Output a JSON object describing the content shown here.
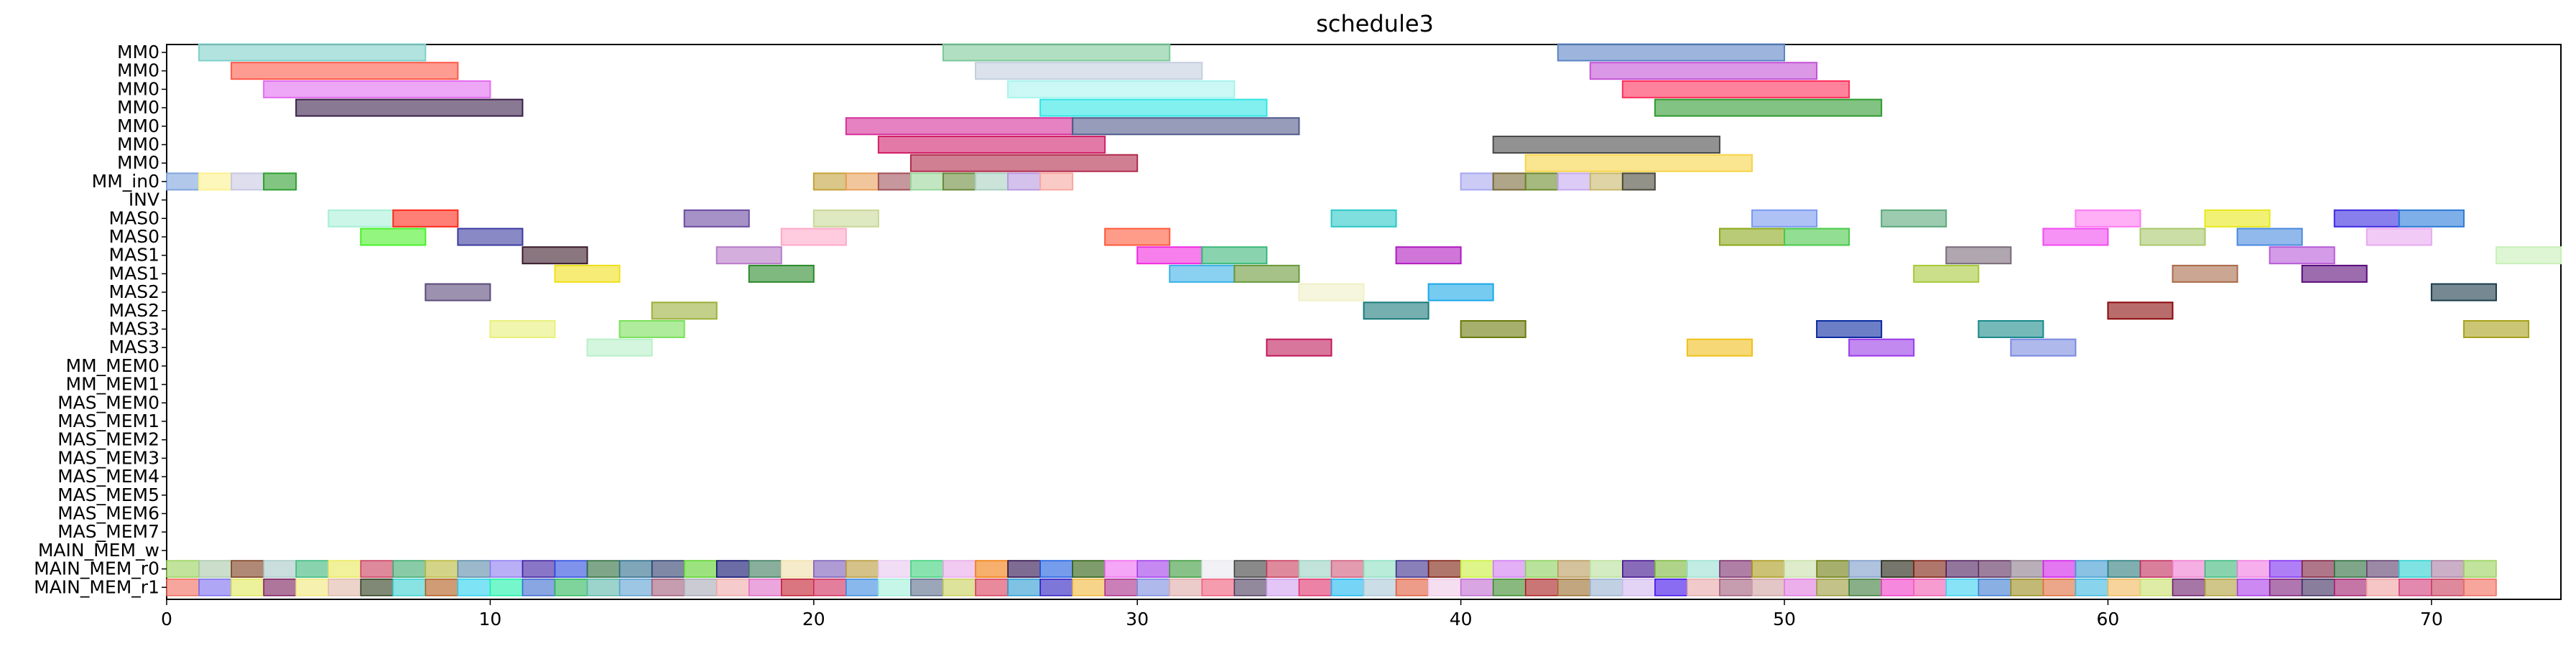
{
  "chart_data": {
    "type": "gantt",
    "title": "schedule3",
    "xlim": [
      0,
      74
    ],
    "x_ticks": [
      0,
      10,
      20,
      30,
      40,
      50,
      60,
      70
    ],
    "rows": [
      "MM0",
      "MM0",
      "MM0",
      "MM0",
      "MM0",
      "MM0",
      "MM0",
      "MM_in0",
      "INV",
      "MAS0",
      "MAS0",
      "MAS1",
      "MAS1",
      "MAS2",
      "MAS2",
      "MAS3",
      "MAS3",
      "MM_MEM0",
      "MM_MEM1",
      "MAS_MEM0",
      "MAS_MEM1",
      "MAS_MEM2",
      "MAS_MEM3",
      "MAS_MEM4",
      "MAS_MEM5",
      "MAS_MEM6",
      "MAS_MEM7",
      "MAIN_MEM_w",
      "MAIN_MEM_r0",
      "MAIN_MEM_r1"
    ],
    "tasks": [
      {
        "row": 0,
        "start": 1,
        "end": 8,
        "color": "#7fd1c9"
      },
      {
        "row": 0,
        "start": 24,
        "end": 31,
        "color": "#7cc99a"
      },
      {
        "row": 0,
        "start": 43,
        "end": 50,
        "color": "#5b84c4"
      },
      {
        "row": 1,
        "start": 2,
        "end": 9,
        "color": "#ff5a4a"
      },
      {
        "row": 1,
        "start": 25,
        "end": 32,
        "color": "#c3cfe0"
      },
      {
        "row": 1,
        "start": 44,
        "end": 51,
        "color": "#c354d6"
      },
      {
        "row": 2,
        "start": 3,
        "end": 10,
        "color": "#e36cf0"
      },
      {
        "row": 2,
        "start": 26,
        "end": 33,
        "color": "#a8f3ee"
      },
      {
        "row": 2,
        "start": 45,
        "end": 52,
        "color": "#ff2e5a"
      },
      {
        "row": 3,
        "start": 4,
        "end": 11,
        "color": "#3a1f4a"
      },
      {
        "row": 3,
        "start": 27,
        "end": 34,
        "color": "#2fe6e4"
      },
      {
        "row": 3,
        "start": 46,
        "end": 53,
        "color": "#2f9a2f"
      },
      {
        "row": 4,
        "start": 21,
        "end": 28,
        "color": "#d62e9a"
      },
      {
        "row": 4,
        "start": 28,
        "end": 35,
        "color": "#505a8a"
      },
      {
        "row": 5,
        "start": 22,
        "end": 29,
        "color": "#d1206a"
      },
      {
        "row": 5,
        "start": 41,
        "end": 48,
        "color": "#4a4a4a"
      },
      {
        "row": 6,
        "start": 23,
        "end": 30,
        "color": "#b02a4a"
      },
      {
        "row": 6,
        "start": 42,
        "end": 49,
        "color": "#f7d448"
      },
      {
        "row": 7,
        "start": 0,
        "end": 1,
        "color": "#7fa3dd"
      },
      {
        "row": 7,
        "start": 1,
        "end": 2,
        "color": "#fbf28f"
      },
      {
        "row": 7,
        "start": 2,
        "end": 3,
        "color": "#c8c8e2"
      },
      {
        "row": 7,
        "start": 3,
        "end": 4,
        "color": "#2f9e2f"
      },
      {
        "row": 7,
        "start": 20,
        "end": 21,
        "color": "#c2a23a"
      },
      {
        "row": 7,
        "start": 21,
        "end": 22,
        "color": "#e8a05a"
      },
      {
        "row": 7,
        "start": 22,
        "end": 23,
        "color": "#a0525a"
      },
      {
        "row": 7,
        "start": 23,
        "end": 24,
        "color": "#9ad69a"
      },
      {
        "row": 7,
        "start": 24,
        "end": 25,
        "color": "#6a8a3a"
      },
      {
        "row": 7,
        "start": 25,
        "end": 26,
        "color": "#a8d0c0"
      },
      {
        "row": 7,
        "start": 26,
        "end": 27,
        "color": "#b89ae0"
      },
      {
        "row": 7,
        "start": 27,
        "end": 28,
        "color": "#f7a8a0"
      },
      {
        "row": 7,
        "start": 40,
        "end": 41,
        "color": "#a8a8f0"
      },
      {
        "row": 7,
        "start": 41,
        "end": 42,
        "color": "#7a6a3a"
      },
      {
        "row": 7,
        "start": 42,
        "end": 43,
        "color": "#6a8a2a"
      },
      {
        "row": 7,
        "start": 43,
        "end": 44,
        "color": "#c4a8f0"
      },
      {
        "row": 7,
        "start": 44,
        "end": 45,
        "color": "#c8b86a"
      },
      {
        "row": 7,
        "start": 45,
        "end": 46,
        "color": "#4a4a3a"
      },
      {
        "row": 9,
        "start": 5,
        "end": 7,
        "color": "#a8f0d8"
      },
      {
        "row": 9,
        "start": 7,
        "end": 9,
        "color": "#ff2a1a"
      },
      {
        "row": 9,
        "start": 16,
        "end": 18,
        "color": "#6a4aa0"
      },
      {
        "row": 9,
        "start": 20,
        "end": 22,
        "color": "#c8d898"
      },
      {
        "row": 9,
        "start": 36,
        "end": 38,
        "color": "#2ac8c8"
      },
      {
        "row": 9,
        "start": 49,
        "end": 51,
        "color": "#7a9af0"
      },
      {
        "row": 9,
        "start": 53,
        "end": 55,
        "color": "#5aa87a"
      },
      {
        "row": 9,
        "start": 59,
        "end": 61,
        "color": "#ff7af0"
      },
      {
        "row": 9,
        "start": 63,
        "end": 65,
        "color": "#e8e81a"
      },
      {
        "row": 9,
        "start": 67,
        "end": 69,
        "color": "#3a2ae0"
      },
      {
        "row": 9,
        "start": 69,
        "end": 71,
        "color": "#2a7ad8"
      },
      {
        "row": 10,
        "start": 6,
        "end": 8,
        "color": "#4af02a"
      },
      {
        "row": 10,
        "start": 9,
        "end": 11,
        "color": "#3a3aa0"
      },
      {
        "row": 10,
        "start": 19,
        "end": 21,
        "color": "#ffa8c8"
      },
      {
        "row": 10,
        "start": 29,
        "end": 31,
        "color": "#ff5a3a"
      },
      {
        "row": 10,
        "start": 48,
        "end": 50,
        "color": "#8aa81a"
      },
      {
        "row": 10,
        "start": 50,
        "end": 52,
        "color": "#4ac84a"
      },
      {
        "row": 10,
        "start": 58,
        "end": 60,
        "color": "#f04af0"
      },
      {
        "row": 10,
        "start": 61,
        "end": 63,
        "color": "#a8c86a"
      },
      {
        "row": 10,
        "start": 64,
        "end": 66,
        "color": "#4a8ae0"
      },
      {
        "row": 10,
        "start": 68,
        "end": 70,
        "color": "#e8a8f0"
      },
      {
        "row": 11,
        "start": 11,
        "end": 13,
        "color": "#3a1a2a"
      },
      {
        "row": 11,
        "start": 17,
        "end": 19,
        "color": "#b87ac8"
      },
      {
        "row": 11,
        "start": 30,
        "end": 32,
        "color": "#f02ae0"
      },
      {
        "row": 11,
        "start": 32,
        "end": 34,
        "color": "#3ab87a"
      },
      {
        "row": 11,
        "start": 38,
        "end": 40,
        "color": "#b01ac0"
      },
      {
        "row": 11,
        "start": 55,
        "end": 57,
        "color": "#7a6a7a"
      },
      {
        "row": 11,
        "start": 65,
        "end": 67,
        "color": "#b85ad8"
      },
      {
        "row": 11,
        "start": 72,
        "end": 74,
        "color": "#c8f0b8"
      },
      {
        "row": 12,
        "start": 12,
        "end": 14,
        "color": "#f0e01a"
      },
      {
        "row": 12,
        "start": 18,
        "end": 20,
        "color": "#2a8a2a"
      },
      {
        "row": 12,
        "start": 31,
        "end": 33,
        "color": "#3ab0e8"
      },
      {
        "row": 12,
        "start": 33,
        "end": 35,
        "color": "#6a9a3a"
      },
      {
        "row": 12,
        "start": 54,
        "end": 56,
        "color": "#a8c83a"
      },
      {
        "row": 12,
        "start": 62,
        "end": 64,
        "color": "#a86a4a"
      },
      {
        "row": 12,
        "start": 66,
        "end": 68,
        "color": "#5a0a7a"
      },
      {
        "row": 13,
        "start": 8,
        "end": 10,
        "color": "#5a4a7a"
      },
      {
        "row": 13,
        "start": 35,
        "end": 37,
        "color": "#f0f0c8"
      },
      {
        "row": 13,
        "start": 39,
        "end": 41,
        "color": "#1aa8e8"
      },
      {
        "row": 13,
        "start": 70,
        "end": 72,
        "color": "#1a3a4a"
      },
      {
        "row": 14,
        "start": 15,
        "end": 17,
        "color": "#9ab03a"
      },
      {
        "row": 14,
        "start": 37,
        "end": 39,
        "color": "#1a7a7a"
      },
      {
        "row": 14,
        "start": 60,
        "end": 62,
        "color": "#8a0a0a"
      },
      {
        "row": 15,
        "start": 10,
        "end": 12,
        "color": "#e8f07a"
      },
      {
        "row": 15,
        "start": 14,
        "end": 16,
        "color": "#7ae05a"
      },
      {
        "row": 15,
        "start": 40,
        "end": 42,
        "color": "#6a7a0a"
      },
      {
        "row": 15,
        "start": 51,
        "end": 53,
        "color": "#0a2aa0"
      },
      {
        "row": 15,
        "start": 56,
        "end": 58,
        "color": "#1a8a8a"
      },
      {
        "row": 15,
        "start": 71,
        "end": 73,
        "color": "#a8a01a"
      },
      {
        "row": 16,
        "start": 13,
        "end": 15,
        "color": "#b8f0c8"
      },
      {
        "row": 16,
        "start": 34,
        "end": 36,
        "color": "#c01a5a"
      },
      {
        "row": 16,
        "start": 47,
        "end": 49,
        "color": "#f0c01a"
      },
      {
        "row": 16,
        "start": 52,
        "end": 54,
        "color": "#9a3ae8"
      },
      {
        "row": 16,
        "start": 57,
        "end": 59,
        "color": "#7a8ae0"
      }
    ],
    "mem_rows": {
      "r0_row": 28,
      "r1_row": 29,
      "start": 0,
      "end": 72,
      "r0_colors": [
        "#9ad05a",
        "#a8c8a8",
        "#7a3a1a",
        "#a8c8c8",
        "#3ab87a",
        "#e8e85a",
        "#c83a5a",
        "#3aa86a",
        "#b8b83a",
        "#5a8aa8",
        "#8a7af0",
        "#3a1aa0",
        "#2a4ae0",
        "#2a6a3a",
        "#2a6a8a",
        "#2a3a6a",
        "#5ad02a",
        "#0a0a6a",
        "#3a7a5a",
        "#f0e0a8",
        "#7a5ab8",
        "#b89a3a",
        "#e8c8f0",
        "#3ad07a",
        "#e8a8e8",
        "#f07a0a",
        "#2a0a4a",
        "#1a5ae0",
        "#2a5a0a",
        "#f06af0",
        "#a03ae8",
        "#3a9a3a",
        "#e8e8f0",
        "#3a3a3a",
        "#c83a5a",
        "#9ad0c0",
        "#d05a7a",
        "#8ae0c0",
        "#3a2a8a",
        "#7a1a0a",
        "#c8f03a",
        "#d07af0",
        "#8ad05a",
        "#b89a5a",
        "#b8e09a",
        "#3a0a8a",
        "#7ab83a",
        "#9ae0d0",
        "#7a2a6a",
        "#a89a1a",
        "#c8e0a8",
        "#6a7a0a",
        "#7a9ac8",
        "#1a1a0a",
        "#7a1a0a",
        "#4a1a5a",
        "#5a2a5a",
        "#8a7a8a",
        "#d01ae8",
        "#3a9ad0",
        "#2a7a7a",
        "#c02a5a",
        "#f07ad0",
        "#3ab87a",
        "#f07ae0",
        "#7a2af0",
        "#7a1a3a",
        "#2a6a3a",
        "#5a3a6a",
        "#2ad0d0",
        "#a87aa0"
      ],
      "r1_colors": [
        "#f06a5a",
        "#7a6af0",
        "#e0e85a",
        "#7a1a5a",
        "#f0e87a",
        "#e0b8a8",
        "#2a3a1a",
        "#3ad0d0",
        "#b05a1a",
        "#2ad0f0",
        "#1af0a8",
        "#3a6ad0",
        "#2ab85a",
        "#5ab8a8",
        "#5aa0d0",
        "#a05a7a",
        "#a8a8b8",
        "#f0a8a8",
        "#e06ac8",
        "#c01a2a",
        "#d02a5a",
        "#3a8ae0",
        "#a0f0d8",
        "#5a6a8a",
        "#c8d05a",
        "#d83a5a",
        "#2a9ad0",
        "#2a1ac0",
        "#f0b83a",
        "#a82a8a",
        "#7a8ae0",
        "#e0a8a8",
        "#f05a7a",
        "#4a3a5a",
        "#d0a0f0",
        "#e0306a",
        "#1ab8f0",
        "#a8c8d8",
        "#e05a3a",
        "#f0c8e8",
        "#c06ad0",
        "#3a8a2a",
        "#a81a1a",
        "#9a6a2a",
        "#9ab0d0",
        "#d0b8f0",
        "#3a0ae8",
        "#e8a8a8",
        "#a05a7a",
        "#d0a0a0",
        "#e07ae0",
        "#9a9a3a",
        "#3a7a3a",
        "#f03ac8",
        "#f05ab0",
        "#3ad0f0",
        "#3a7ad0",
        "#9a8a1a",
        "#e06a3a",
        "#3ab8e0",
        "#f0b85a",
        "#c8e06a",
        "#6a1a6a",
        "#b0a03a",
        "#a83ae8",
        "#7a1a7a",
        "#3a2a5a",
        "#a01a6a",
        "#f0a0a0",
        "#d03a7a",
        "#c83a5a"
      ]
    }
  }
}
